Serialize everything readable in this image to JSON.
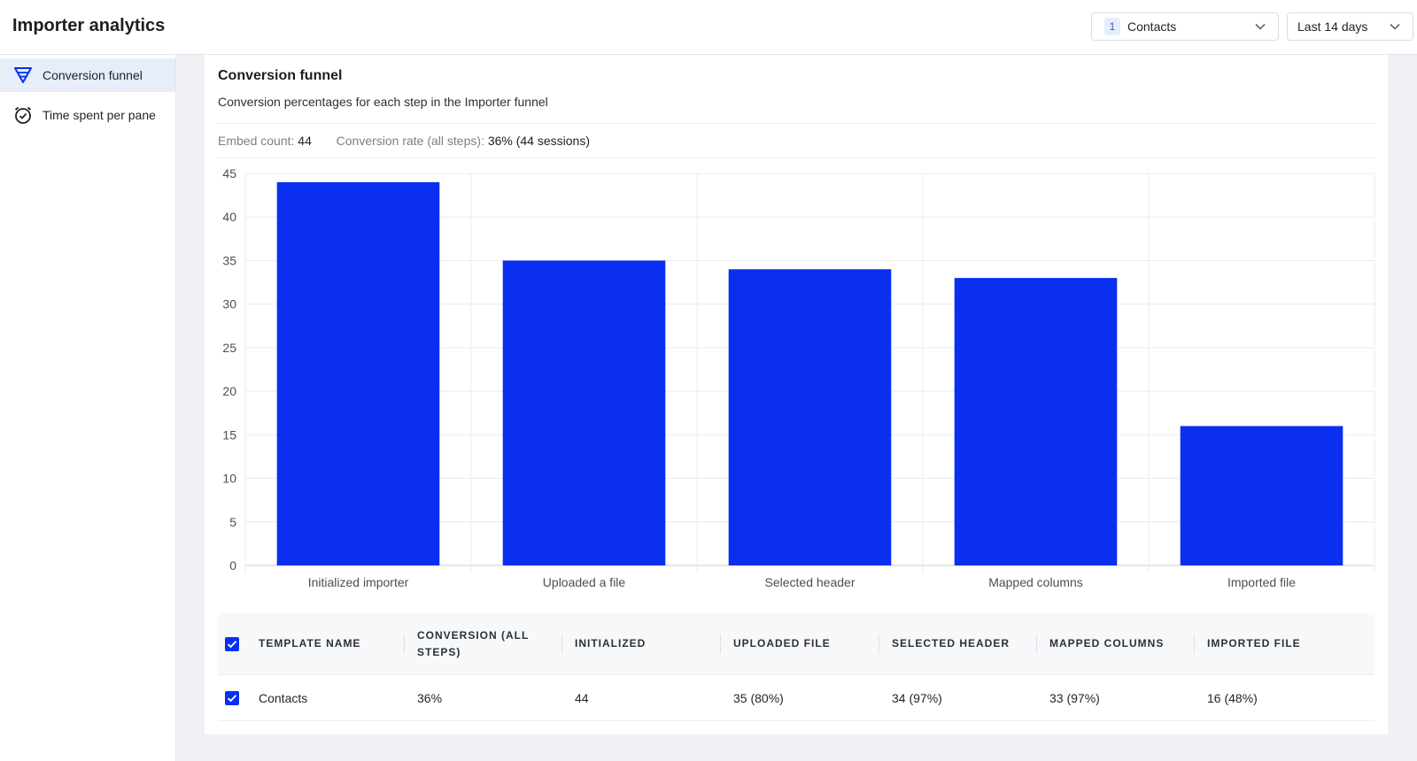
{
  "app": {
    "title": "Importer analytics"
  },
  "filters": {
    "template": {
      "badge": "1",
      "label": "Contacts"
    },
    "range": {
      "label": "Last 14 days"
    }
  },
  "sidebar": {
    "items": [
      {
        "label": "Conversion funnel",
        "icon": "funnel-icon",
        "active": true
      },
      {
        "label": "Time spent per pane",
        "icon": "alarm-clock-icon",
        "active": false
      }
    ]
  },
  "card": {
    "title": "Conversion funnel",
    "subtitle": "Conversion percentages for each step in the Importer funnel",
    "stats": {
      "embed_label": "Embed count:",
      "embed_value": "44",
      "rate_label": "Conversion rate (all steps):",
      "rate_value": "36% (44 sessions)"
    }
  },
  "chart_data": {
    "type": "bar",
    "categories": [
      "Initialized importer",
      "Uploaded a file",
      "Selected header",
      "Mapped columns",
      "Imported file"
    ],
    "values": [
      44,
      35,
      34,
      33,
      16
    ],
    "yticks": [
      0,
      5,
      10,
      15,
      20,
      25,
      30,
      35,
      40,
      45
    ],
    "ylim": [
      0,
      45
    ],
    "color": "#0a2ff0",
    "grid": true
  },
  "table": {
    "headers": [
      "TEMPLATE NAME",
      "CONVERSION (ALL STEPS)",
      "INITIALIZED",
      "UPLOADED FILE",
      "SELECTED HEADER",
      "MAPPED COLUMNS",
      "IMPORTED FILE"
    ],
    "rows": [
      {
        "checked": true,
        "cells": [
          "Contacts",
          "36%",
          "44",
          "35 (80%)",
          "34 (97%)",
          "33 (97%)",
          "16 (48%)"
        ]
      }
    ],
    "header_checked": true
  },
  "colors": {
    "accent": "#0a2ff0",
    "active_bg": "#e7edf9"
  }
}
